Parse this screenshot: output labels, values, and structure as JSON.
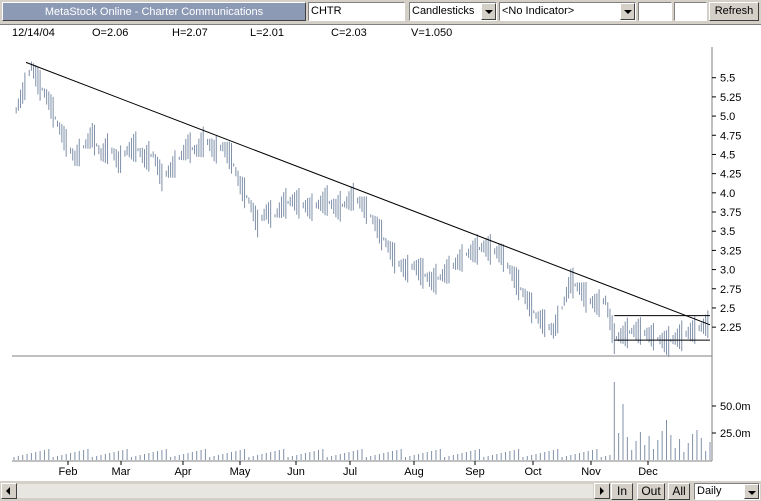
{
  "toolbar": {
    "title": "MetaStock Online - Charter Communications",
    "symbol": "CHTR",
    "chart_style": "Candlesticks",
    "indicator": "<No Indicator>",
    "refresh_label": "Refresh"
  },
  "quote": {
    "date": "12/14/04",
    "open": "O=2.06",
    "high": "H=2.07",
    "low": "L=2.01",
    "close": "C=2.03",
    "volume": "V=1.050"
  },
  "scrollbar": {
    "zoom_in": "In",
    "zoom_out": "Out",
    "all": "All",
    "period": "Daily"
  },
  "chart_data": {
    "type": "line",
    "title": "",
    "price_ticks": [
      "5.5",
      "5.25",
      "5.0",
      "4.75",
      "4.5",
      "4.25",
      "4.0",
      "3.75",
      "3.5",
      "3.25",
      "3.0",
      "2.75",
      "2.5",
      "2.25"
    ],
    "volume_ticks": [
      "50.0m",
      "25.0m"
    ],
    "months": [
      "Feb",
      "Mar",
      "Apr",
      "May",
      "Jun",
      "Jul",
      "Aug",
      "Sep",
      "Oct",
      "Nov",
      "Dec"
    ],
    "ylim": [
      1.9,
      5.9
    ],
    "colors": {
      "price": "#7f90a8",
      "line": "#000000",
      "grid": "#808080"
    },
    "series": [
      {
        "values": [
          [
            0,
            5.0
          ],
          [
            2,
            5.3
          ],
          [
            4,
            5.65
          ],
          [
            6,
            5.4
          ],
          [
            8,
            5.2
          ],
          [
            10,
            4.9
          ],
          [
            12,
            4.65
          ],
          [
            14,
            4.45
          ],
          [
            16,
            4.6
          ],
          [
            18,
            4.75
          ],
          [
            20,
            4.5
          ],
          [
            22,
            4.6
          ],
          [
            24,
            4.4
          ],
          [
            26,
            4.55
          ],
          [
            28,
            4.6
          ],
          [
            30,
            4.45
          ],
          [
            32,
            4.5
          ],
          [
            34,
            4.2
          ],
          [
            36,
            4.3
          ],
          [
            38,
            4.45
          ],
          [
            40,
            4.6
          ],
          [
            42,
            4.55
          ],
          [
            44,
            4.7
          ],
          [
            46,
            4.55
          ],
          [
            48,
            4.6
          ],
          [
            50,
            4.45
          ],
          [
            52,
            4.1
          ],
          [
            54,
            3.9
          ],
          [
            56,
            3.6
          ],
          [
            58,
            3.75
          ],
          [
            60,
            3.7
          ],
          [
            62,
            3.85
          ],
          [
            64,
            3.9
          ],
          [
            66,
            3.85
          ],
          [
            68,
            3.8
          ],
          [
            70,
            3.85
          ],
          [
            72,
            3.9
          ],
          [
            74,
            3.8
          ],
          [
            76,
            3.85
          ],
          [
            78,
            3.95
          ],
          [
            80,
            3.85
          ],
          [
            82,
            3.7
          ],
          [
            84,
            3.5
          ],
          [
            86,
            3.3
          ],
          [
            88,
            3.1
          ],
          [
            90,
            3.0
          ],
          [
            92,
            3.05
          ],
          [
            94,
            2.95
          ],
          [
            96,
            2.85
          ],
          [
            98,
            2.9
          ],
          [
            100,
            3.0
          ],
          [
            102,
            3.1
          ],
          [
            104,
            3.2
          ],
          [
            106,
            3.25
          ],
          [
            108,
            3.3
          ],
          [
            110,
            3.25
          ],
          [
            112,
            3.2
          ],
          [
            114,
            3.0
          ],
          [
            116,
            2.8
          ],
          [
            118,
            2.6
          ],
          [
            120,
            2.4
          ],
          [
            122,
            2.3
          ],
          [
            124,
            2.2
          ],
          [
            126,
            2.5
          ],
          [
            128,
            2.85
          ],
          [
            130,
            2.75
          ],
          [
            132,
            2.6
          ],
          [
            134,
            2.55
          ],
          [
            136,
            2.6
          ],
          [
            138,
            2.1
          ],
          [
            140,
            2.15
          ],
          [
            142,
            2.2
          ],
          [
            144,
            2.2
          ],
          [
            146,
            2.15
          ],
          [
            148,
            2.1
          ],
          [
            150,
            2.05
          ],
          [
            152,
            2.1
          ],
          [
            154,
            2.15
          ],
          [
            156,
            2.2
          ],
          [
            158,
            2.25
          ],
          [
            160,
            2.3
          ]
        ]
      },
      {
        "values": [
          [
            0,
            5.7
          ],
          [
            160,
            2.28
          ]
        ]
      }
    ],
    "support_line": {
      "from": [
        138,
        2.08
      ],
      "to": [
        160,
        2.08
      ]
    },
    "resistance_bracket": {
      "from": [
        138,
        2.4
      ],
      "to": [
        160,
        2.4
      ]
    },
    "grid": false
  }
}
